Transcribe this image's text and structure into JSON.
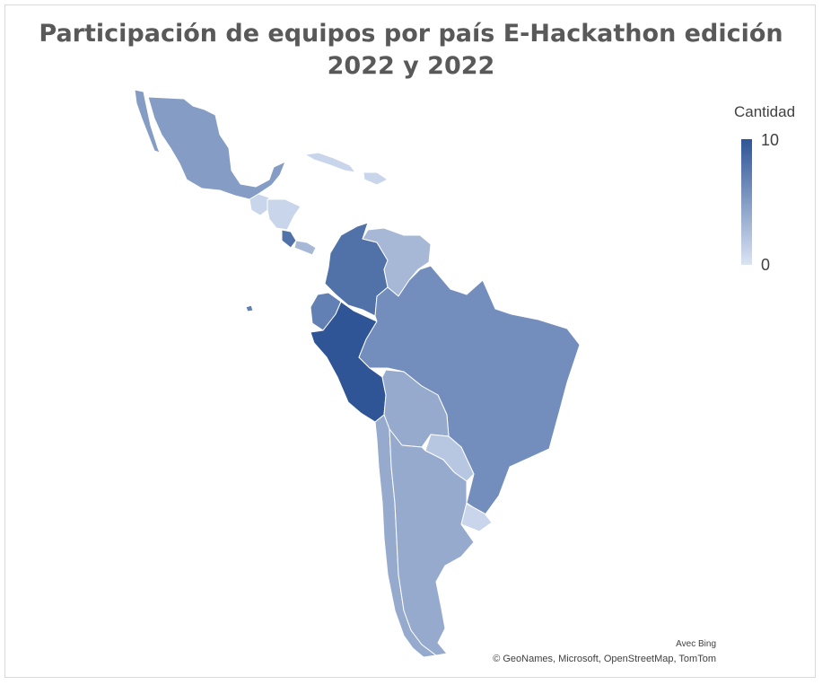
{
  "title": "Participación de equipos por país E-Hackathon edición 2022 y 2022",
  "legend": {
    "title": "Cantidad",
    "max": "10",
    "min": "0",
    "color_max": "#2f5597",
    "color_min": "#dae3f3"
  },
  "credits": {
    "line1": "Avec Bing",
    "line2": "© GeoNames, Microsoft, OpenStreetMap, TomTom"
  },
  "countries": [
    {
      "name": "México",
      "value": 5
    },
    {
      "name": "Guatemala",
      "value": 1
    },
    {
      "name": "Honduras",
      "value": 1
    },
    {
      "name": "Costa Rica",
      "value": 8
    },
    {
      "name": "Panamá",
      "value": 3
    },
    {
      "name": "Cuba",
      "value": 1
    },
    {
      "name": "República Dominicana",
      "value": 1
    },
    {
      "name": "Colombia",
      "value": 8
    },
    {
      "name": "Venezuela",
      "value": 3
    },
    {
      "name": "Ecuador",
      "value": 7
    },
    {
      "name": "Perú",
      "value": 10
    },
    {
      "name": "Brasil",
      "value": 6
    },
    {
      "name": "Bolivia",
      "value": 4
    },
    {
      "name": "Paraguay",
      "value": 2
    },
    {
      "name": "Chile",
      "value": 4
    },
    {
      "name": "Argentina",
      "value": 4
    },
    {
      "name": "Uruguay",
      "value": 1
    }
  ]
}
